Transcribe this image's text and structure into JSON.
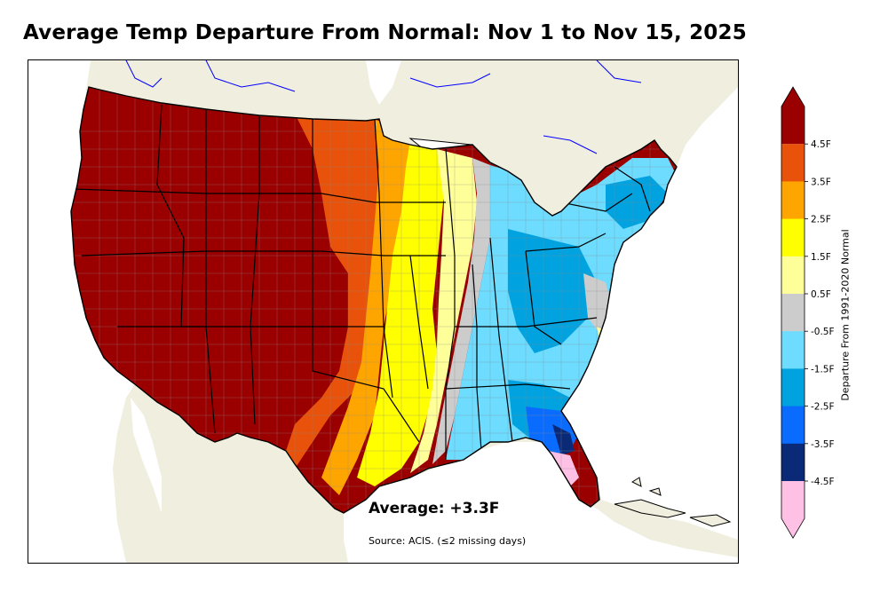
{
  "title": "Average Temp Departure From Normal: Nov 1 to Nov 15, 2025",
  "average_label": "Average: +3.3F",
  "source_label": "Source: ACIS. (≤2 missing days)",
  "colorbar": {
    "label": "Departure From 1991-2020 Normal",
    "ticks": [
      "4.5F",
      "3.5F",
      "2.5F",
      "1.5F",
      "0.5F",
      "-0.5F",
      "-1.5F",
      "-2.5F",
      "-3.5F",
      "-4.5F"
    ],
    "bins": [
      {
        "color": "#9b0000"
      },
      {
        "color": "#e8520a"
      },
      {
        "color": "#ffa500"
      },
      {
        "color": "#ffff00"
      },
      {
        "color": "#ffff99"
      },
      {
        "color": "#cccccc"
      },
      {
        "color": "#6ddcff"
      },
      {
        "color": "#00a2e0"
      },
      {
        "color": "#0a6cff"
      },
      {
        "color": "#0a2a78"
      },
      {
        "color": "#ffc0e6"
      }
    ]
  },
  "colors": {
    "land_background": "#f0eede",
    "water": "#ffffff",
    "border": "#000000",
    "county_lines": "#8a8a8a",
    "rivers": "#0000ff"
  }
}
